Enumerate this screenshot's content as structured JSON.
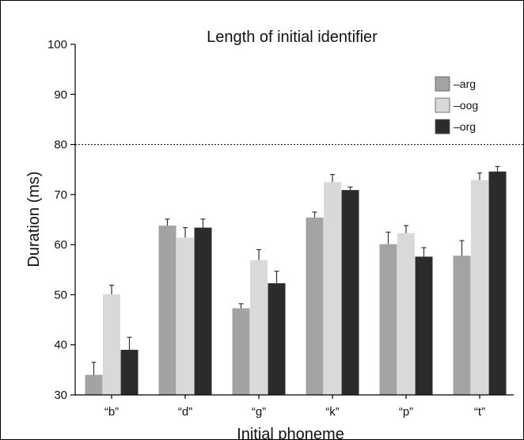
{
  "chart_data": {
    "type": "bar",
    "title": "Length of initial identifier",
    "xlabel": "Initial phoneme",
    "ylabel": "Duration (ms)",
    "categories": [
      "“b”",
      "“d”",
      "“g”",
      "“k”",
      "“p”",
      "“t”"
    ],
    "ylim": [
      30,
      100
    ],
    "yticks": [
      30,
      40,
      50,
      60,
      70,
      80,
      90,
      100
    ],
    "reference_line": 80,
    "legend_position": "top-right",
    "series": [
      {
        "name": "–arg",
        "color": "#a3a3a3",
        "values": [
          34.0,
          63.8,
          47.3,
          65.4,
          60.1,
          57.8
        ],
        "errors": [
          2.5,
          1.3,
          0.9,
          1.1,
          2.4,
          3.0
        ]
      },
      {
        "name": "–oog",
        "color": "#d9d9d9",
        "values": [
          50.1,
          61.4,
          56.9,
          72.5,
          62.3,
          72.9
        ],
        "errors": [
          1.8,
          2.0,
          2.1,
          1.5,
          1.5,
          1.4
        ]
      },
      {
        "name": "–org",
        "color": "#2b2b2b",
        "values": [
          39.0,
          63.4,
          52.3,
          70.9,
          57.6,
          74.6
        ],
        "errors": [
          2.5,
          1.7,
          2.4,
          0.6,
          1.8,
          1.0
        ]
      }
    ]
  }
}
